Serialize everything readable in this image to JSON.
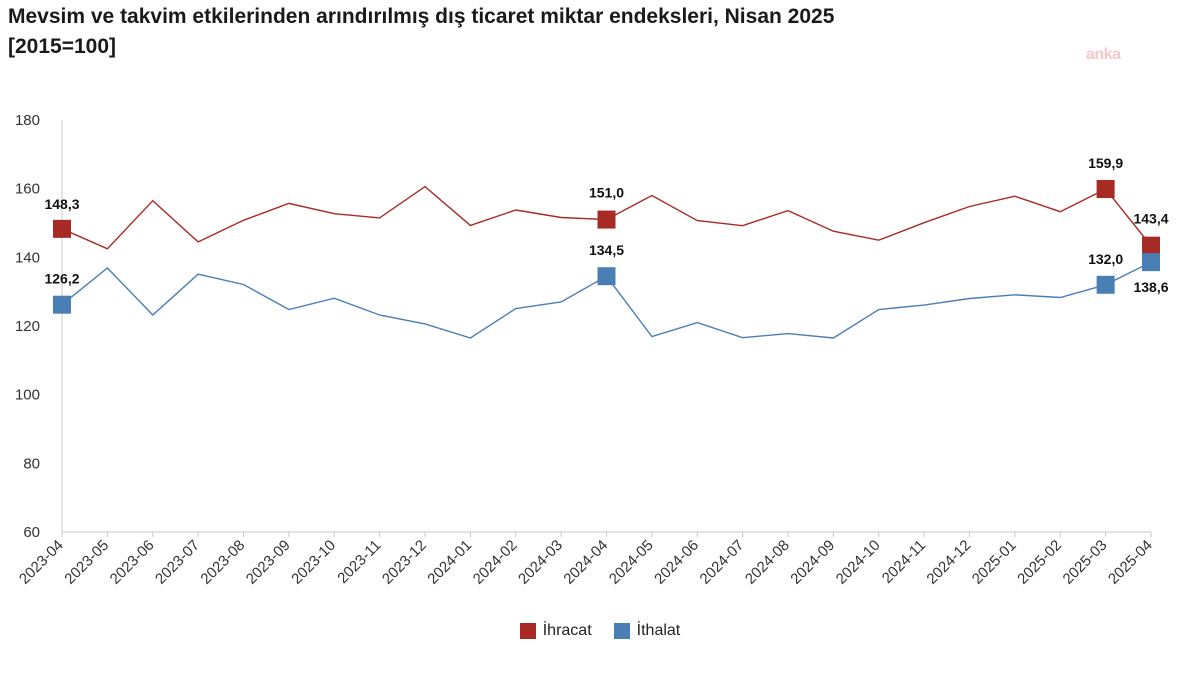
{
  "title_line1": "Mevsim ve takvim etkilerinden arındırılmış dış ticaret miktar endeksleri, Nisan 2025",
  "title_line2": "[2015=100]",
  "watermark": "anka",
  "chart_data": {
    "type": "line",
    "title": "Mevsim ve takvim etkilerinden arındırılmış dış ticaret miktar endeksleri, Nisan 2025 [2015=100]",
    "categories": [
      "2023-04",
      "2023-05",
      "2023-06",
      "2023-07",
      "2023-08",
      "2023-09",
      "2023-10",
      "2023-11",
      "2023-12",
      "2024-01",
      "2024-02",
      "2024-03",
      "2024-04",
      "2024-05",
      "2024-06",
      "2024-07",
      "2024-08",
      "2024-09",
      "2024-10",
      "2024-11",
      "2024-12",
      "2025-01",
      "2025-02",
      "2025-03",
      "2025-04"
    ],
    "ylim": [
      60,
      180
    ],
    "yticks": [
      60,
      80,
      100,
      120,
      140,
      160,
      180
    ],
    "grid": false,
    "legend_position": "bottom",
    "series": [
      {
        "name": "İhracat",
        "color": "#a82a25",
        "values": [
          148.3,
          142.5,
          156.5,
          144.5,
          150.8,
          155.7,
          152.7,
          151.5,
          160.6,
          149.3,
          153.8,
          151.6,
          151.0,
          158.0,
          150.7,
          149.2,
          153.6,
          147.6,
          145.0,
          150.1,
          154.8,
          157.8,
          153.3,
          159.9,
          143.4
        ],
        "labels": {
          "0": "148,3",
          "12": "151,0",
          "23": "159,9",
          "24": "143,4"
        }
      },
      {
        "name": "İthalat",
        "color": "#4a7fb5",
        "values": [
          126.2,
          136.9,
          123.2,
          135.1,
          132.1,
          124.8,
          128.1,
          123.2,
          120.6,
          116.5,
          125.1,
          127.0,
          134.5,
          116.9,
          121.0,
          116.6,
          117.8,
          116.5,
          124.8,
          126.1,
          128.0,
          129.1,
          128.3,
          132.0,
          138.6
        ],
        "labels": {
          "0": "126,2",
          "12": "134,5",
          "23": "132,0",
          "24": "138,6"
        }
      }
    ]
  }
}
